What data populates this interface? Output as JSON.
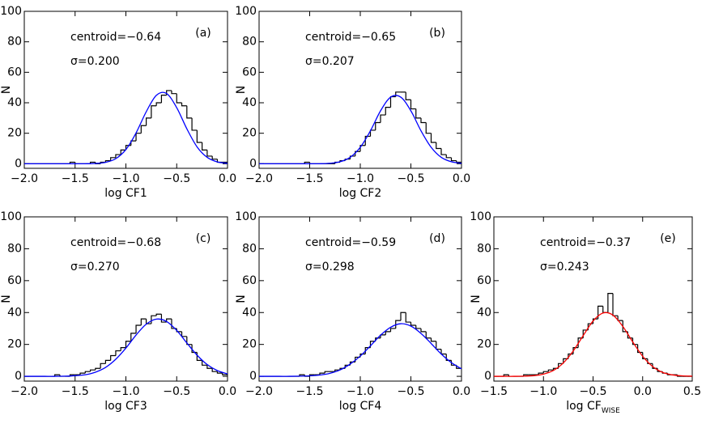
{
  "chart_data": [
    {
      "type": "histogram",
      "label": "(a)",
      "annotations": [
        "centroid=−0.64",
        "σ=0.200"
      ],
      "xlabel": "log CF1",
      "ylabel": "N",
      "color": "#000000",
      "bins": [
        -2.0,
        -1.95,
        -1.9,
        -1.85,
        -1.8,
        -1.75,
        -1.7,
        -1.65,
        -1.6,
        -1.55,
        -1.5,
        -1.45,
        -1.4,
        -1.35,
        -1.3,
        -1.25,
        -1.2,
        -1.15,
        -1.1,
        -1.05,
        -1.0,
        -0.95,
        -0.9,
        -0.85,
        -0.8,
        -0.75,
        -0.7,
        -0.65,
        -0.6,
        -0.55,
        -0.5,
        -0.45,
        -0.4,
        -0.35,
        -0.3,
        -0.25,
        -0.2,
        -0.15,
        -0.1,
        -0.05,
        0.0
      ],
      "values": [
        0,
        0,
        0,
        0,
        0,
        0,
        0,
        0,
        0,
        1,
        0,
        0,
        0,
        1,
        0,
        1,
        2,
        4,
        6,
        9,
        12,
        15,
        20,
        25,
        30,
        38,
        40,
        45,
        48,
        46,
        40,
        38,
        30,
        22,
        14,
        9,
        5,
        3,
        1,
        1
      ],
      "fit": {
        "color": "#0000ff",
        "x": [
          -2.0,
          -1.9,
          -1.8,
          -1.7,
          -1.6,
          -1.5,
          -1.4,
          -1.3,
          -1.2,
          -1.1,
          -1.0,
          -0.9,
          -0.8,
          -0.7,
          -0.6,
          -0.5,
          -0.4,
          -0.3,
          -0.2,
          -0.1,
          0.0
        ],
        "values": [
          0,
          0,
          0,
          0,
          0,
          0,
          0,
          0.2,
          0.9,
          3.3,
          9.3,
          20.2,
          34.1,
          44.9,
          46.1,
          36.8,
          22.9,
          11.1,
          4.2,
          1.2,
          0.3
        ]
      },
      "xlim": [
        -2,
        0
      ],
      "ylim": [
        -3,
        100
      ],
      "xticks": [
        {
          "value": -2,
          "label": "−2.0"
        },
        {
          "value": -1.5,
          "label": "−1.5"
        },
        {
          "value": -1,
          "label": "−1.0"
        },
        {
          "value": -0.5,
          "label": "−0.5"
        },
        {
          "value": 0,
          "label": "0.0"
        }
      ],
      "yticks": [
        0,
        20,
        40,
        60,
        80,
        100
      ]
    },
    {
      "type": "histogram",
      "label": "(b)",
      "annotations": [
        "centroid=−0.65",
        "σ=0.207"
      ],
      "xlabel": "log CF2",
      "ylabel": "N",
      "color": "#000000",
      "bins": [
        -2.0,
        -1.95,
        -1.9,
        -1.85,
        -1.8,
        -1.75,
        -1.7,
        -1.65,
        -1.6,
        -1.55,
        -1.5,
        -1.45,
        -1.4,
        -1.35,
        -1.3,
        -1.25,
        -1.2,
        -1.15,
        -1.1,
        -1.05,
        -1.0,
        -0.95,
        -0.9,
        -0.85,
        -0.8,
        -0.75,
        -0.7,
        -0.65,
        -0.6,
        -0.55,
        -0.5,
        -0.45,
        -0.4,
        -0.35,
        -0.3,
        -0.25,
        -0.2,
        -0.15,
        -0.1,
        -0.05,
        0.0
      ],
      "values": [
        0,
        0,
        0,
        0,
        0,
        0,
        0,
        0,
        0,
        1,
        0,
        0,
        0,
        0,
        0,
        1,
        2,
        3,
        5,
        8,
        12,
        18,
        22,
        27,
        32,
        37,
        44,
        47,
        47,
        42,
        36,
        30,
        27,
        20,
        14,
        10,
        6,
        4,
        2,
        1
      ],
      "fit": {
        "color": "#0000ff",
        "x": [
          -2.0,
          -1.9,
          -1.8,
          -1.7,
          -1.6,
          -1.5,
          -1.4,
          -1.3,
          -1.2,
          -1.1,
          -1.0,
          -0.9,
          -0.8,
          -0.7,
          -0.6,
          -0.5,
          -0.4,
          -0.3,
          -0.2,
          -0.1,
          0.0
        ],
        "values": [
          0,
          0,
          0,
          0,
          0,
          0,
          0,
          0.3,
          1.3,
          4.2,
          10.8,
          21.6,
          34.7,
          43.7,
          43.7,
          34.7,
          21.6,
          10.8,
          4.2,
          1.3,
          0.3
        ]
      },
      "xlim": [
        -2,
        0
      ],
      "ylim": [
        -3,
        100
      ],
      "xticks": [
        {
          "value": -2,
          "label": "−2.0"
        },
        {
          "value": -1.5,
          "label": "−1.5"
        },
        {
          "value": -1,
          "label": "−1.0"
        },
        {
          "value": -0.5,
          "label": "−0.5"
        },
        {
          "value": 0,
          "label": "0.0"
        }
      ],
      "yticks": [
        0,
        20,
        40,
        60,
        80,
        100
      ]
    },
    {
      "type": "histogram",
      "label": "(c)",
      "annotations": [
        "centroid=−0.68",
        "σ=0.270"
      ],
      "xlabel": "log CF3",
      "ylabel": "N",
      "color": "#000000",
      "bins": [
        -2.0,
        -1.95,
        -1.9,
        -1.85,
        -1.8,
        -1.75,
        -1.7,
        -1.65,
        -1.6,
        -1.55,
        -1.5,
        -1.45,
        -1.4,
        -1.35,
        -1.3,
        -1.25,
        -1.2,
        -1.15,
        -1.1,
        -1.05,
        -1.0,
        -0.95,
        -0.9,
        -0.85,
        -0.8,
        -0.75,
        -0.7,
        -0.65,
        -0.6,
        -0.55,
        -0.5,
        -0.45,
        -0.4,
        -0.35,
        -0.3,
        -0.25,
        -0.2,
        -0.15,
        -0.1,
        -0.05,
        0.0
      ],
      "values": [
        0,
        0,
        0,
        0,
        0,
        0,
        1,
        0,
        0,
        1,
        1,
        2,
        3,
        4,
        5,
        8,
        10,
        13,
        16,
        18,
        22,
        27,
        32,
        36,
        33,
        38,
        39,
        34,
        36,
        30,
        28,
        25,
        20,
        15,
        10,
        7,
        5,
        3,
        2,
        1
      ],
      "fit": {
        "color": "#0000ff",
        "x": [
          -2.0,
          -1.9,
          -1.8,
          -1.7,
          -1.6,
          -1.5,
          -1.4,
          -1.3,
          -1.2,
          -1.1,
          -1.0,
          -0.9,
          -0.8,
          -0.7,
          -0.6,
          -0.5,
          -0.4,
          -0.3,
          -0.2,
          -0.1,
          0.0
        ],
        "values": [
          0,
          0,
          0,
          0,
          0.1,
          0.4,
          1.0,
          2.6,
          5.6,
          10.7,
          17.7,
          25.9,
          32.7,
          35.9,
          34.4,
          28.8,
          20.9,
          13.3,
          7.4,
          3.6,
          1.5
        ]
      },
      "xlim": [
        -2,
        0
      ],
      "ylim": [
        -3,
        100
      ],
      "xticks": [
        {
          "value": -2,
          "label": "−2.0"
        },
        {
          "value": -1.5,
          "label": "−1.5"
        },
        {
          "value": -1,
          "label": "−1.0"
        },
        {
          "value": -0.5,
          "label": "−0.5"
        },
        {
          "value": 0,
          "label": "0.0"
        }
      ],
      "yticks": [
        0,
        20,
        40,
        60,
        80,
        100
      ]
    },
    {
      "type": "histogram",
      "label": "(d)",
      "annotations": [
        "centroid=−0.59",
        "σ=0.298"
      ],
      "xlabel": "log CF4",
      "ylabel": "N",
      "color": "#000000",
      "bins": [
        -2.0,
        -1.95,
        -1.9,
        -1.85,
        -1.8,
        -1.75,
        -1.7,
        -1.65,
        -1.6,
        -1.55,
        -1.5,
        -1.45,
        -1.4,
        -1.35,
        -1.3,
        -1.25,
        -1.2,
        -1.15,
        -1.1,
        -1.05,
        -1.0,
        -0.95,
        -0.9,
        -0.85,
        -0.8,
        -0.75,
        -0.7,
        -0.65,
        -0.6,
        -0.55,
        -0.5,
        -0.45,
        -0.4,
        -0.35,
        -0.3,
        -0.25,
        -0.2,
        -0.15,
        -0.1,
        -0.05,
        0.0
      ],
      "values": [
        0,
        0,
        0,
        0,
        0,
        0,
        0,
        0,
        1,
        0,
        1,
        1,
        2,
        3,
        3,
        4,
        5,
        7,
        9,
        12,
        14,
        18,
        22,
        24,
        26,
        28,
        30,
        35,
        40,
        34,
        32,
        30,
        28,
        24,
        22,
        17,
        14,
        10,
        7,
        5
      ],
      "fit": {
        "color": "#0000ff",
        "x": [
          -2.0,
          -1.9,
          -1.8,
          -1.7,
          -1.6,
          -1.5,
          -1.4,
          -1.3,
          -1.2,
          -1.1,
          -1.0,
          -0.9,
          -0.8,
          -0.7,
          -0.6,
          -0.5,
          -0.4,
          -0.3,
          -0.2,
          -0.1,
          0.0
        ],
        "values": [
          0,
          0,
          0,
          0,
          0.1,
          0.3,
          0.8,
          1.9,
          4.0,
          7.7,
          12.7,
          19.1,
          25.8,
          30.8,
          33.0,
          31.5,
          26.9,
          20.6,
          14.0,
          8.6,
          4.7
        ]
      },
      "xlim": [
        -2,
        0
      ],
      "ylim": [
        -3,
        100
      ],
      "xticks": [
        {
          "value": -2,
          "label": "−2.0"
        },
        {
          "value": -1.5,
          "label": "−1.5"
        },
        {
          "value": -1,
          "label": "−1.0"
        },
        {
          "value": -0.5,
          "label": "−0.5"
        },
        {
          "value": 0,
          "label": "0.0"
        }
      ],
      "yticks": [
        0,
        20,
        40,
        60,
        80,
        100
      ]
    },
    {
      "type": "histogram",
      "label": "(e)",
      "annotations": [
        "centroid=−0.37",
        "σ=0.243"
      ],
      "xlabel": "log CF",
      "xlabel_subscript": "WISE",
      "ylabel": "N",
      "color": "#000000",
      "bins": [
        -1.5,
        -1.45,
        -1.4,
        -1.35,
        -1.3,
        -1.25,
        -1.2,
        -1.15,
        -1.1,
        -1.05,
        -1.0,
        -0.95,
        -0.9,
        -0.85,
        -0.8,
        -0.75,
        -0.7,
        -0.65,
        -0.6,
        -0.55,
        -0.5,
        -0.45,
        -0.4,
        -0.35,
        -0.3,
        -0.25,
        -0.2,
        -0.15,
        -0.1,
        -0.05,
        0.0,
        0.05,
        0.1,
        0.15,
        0.2,
        0.25,
        0.3,
        0.35,
        0.4,
        0.45,
        0.5
      ],
      "values": [
        0,
        0,
        1,
        0,
        0,
        0,
        1,
        1,
        1,
        2,
        3,
        4,
        5,
        8,
        11,
        14,
        18,
        24,
        29,
        33,
        36,
        44,
        40,
        52,
        38,
        35,
        28,
        24,
        20,
        15,
        11,
        8,
        5,
        3,
        2,
        1,
        1,
        0,
        0,
        0
      ],
      "fit": {
        "color": "#ff0000",
        "x": [
          -1.5,
          -1.4,
          -1.3,
          -1.2,
          -1.1,
          -1.0,
          -0.9,
          -0.8,
          -0.7,
          -0.6,
          -0.5,
          -0.4,
          -0.3,
          -0.2,
          -0.1,
          0.0,
          0.1,
          0.2,
          0.3,
          0.4,
          0.5
        ],
        "values": [
          0,
          0,
          0,
          0.1,
          0.4,
          1.4,
          3.7,
          8.4,
          15.9,
          25.5,
          34.7,
          39.7,
          38.4,
          31.3,
          21.6,
          12.6,
          6.2,
          2.5,
          0.9,
          0.3,
          0.1
        ]
      },
      "xlim": [
        -1.5,
        0.5
      ],
      "ylim": [
        -3,
        100
      ],
      "xticks": [
        {
          "value": -1.5,
          "label": "−1.5"
        },
        {
          "value": -1,
          "label": "−1.0"
        },
        {
          "value": -0.5,
          "label": "−0.5"
        },
        {
          "value": 0,
          "label": "0.0"
        },
        0.5
      ],
      "yticks": [
        0,
        20,
        40,
        60,
        80,
        100
      ]
    }
  ]
}
